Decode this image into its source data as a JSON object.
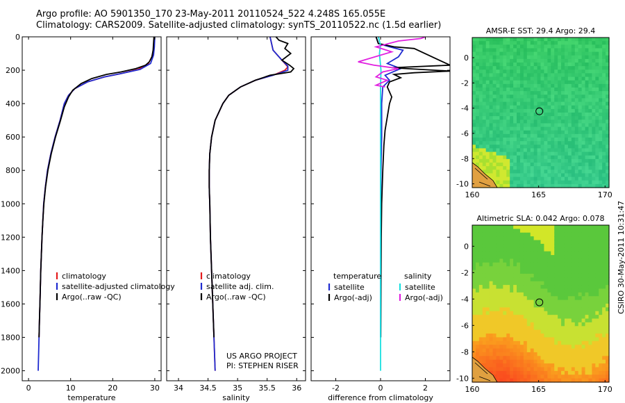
{
  "header": {
    "line1": "Argo profile: AO 5901350_170 23-May-2011 20110524_522 4.248S 165.055E",
    "line2": "Climatology: CARS2009. Satellite-adjusted climatology: synTS_20110522.nc (1.5d earlier)"
  },
  "credit": {
    "project": "US ARGO PROJECT",
    "pi": "PI: STEPHEN RISER",
    "stamp": "CSIRO 30-May-2011 10:31:47"
  },
  "colors": {
    "climatology": "#e41a1c",
    "satellite": "#1f2bd0",
    "argo": "#000000",
    "salinity_satellite": "#19e0e0",
    "salinity_argo": "#e020e0"
  },
  "chart_data": [
    {
      "type": "line",
      "id": "temperature",
      "xlabel": "temperature",
      "xlim": [
        -1.5,
        31.5
      ],
      "ylim": [
        2060,
        0
      ],
      "xticks": [
        0,
        10,
        20,
        30
      ],
      "yticks": [
        0,
        200,
        400,
        600,
        800,
        1000,
        1200,
        1400,
        1600,
        1800,
        2000
      ],
      "legend": [
        "climatology",
        "satellite-adjusted climatology",
        "Argo(..raw -QC)"
      ],
      "series": [
        {
          "name": "climatology",
          "color": "#e41a1c",
          "points": [
            [
              29.9,
              0
            ],
            [
              29.8,
              60
            ],
            [
              29.5,
              110
            ],
            [
              28.5,
              160
            ],
            [
              26,
              195
            ],
            [
              22,
              220
            ],
            [
              18,
              240
            ],
            [
              14,
              270
            ],
            [
              11,
              310
            ],
            [
              9.5,
              350
            ],
            [
              8.5,
              400
            ],
            [
              7.5,
              500
            ],
            [
              6.3,
              600
            ],
            [
              5.3,
              700
            ],
            [
              4.5,
              800
            ],
            [
              4.0,
              900
            ],
            [
              3.6,
              1000
            ],
            [
              3.4,
              1100
            ],
            [
              3.2,
              1200
            ],
            [
              3.05,
              1300
            ],
            [
              2.9,
              1400
            ],
            [
              2.8,
              1500
            ],
            [
              2.7,
              1600
            ],
            [
              2.6,
              1700
            ],
            [
              2.5,
              1800
            ]
          ]
        },
        {
          "name": "satellite-adjusted climatology",
          "color": "#1f2bd0",
          "points": [
            [
              30.0,
              0
            ],
            [
              29.9,
              60
            ],
            [
              29.7,
              110
            ],
            [
              29,
              160
            ],
            [
              26.5,
              195
            ],
            [
              22,
              220
            ],
            [
              18,
              240
            ],
            [
              14,
              270
            ],
            [
              11,
              310
            ],
            [
              9.5,
              350
            ],
            [
              8.5,
              400
            ],
            [
              7.5,
              500
            ],
            [
              6.3,
              600
            ],
            [
              5.3,
              700
            ],
            [
              4.5,
              800
            ],
            [
              4.0,
              900
            ],
            [
              3.6,
              1000
            ],
            [
              3.4,
              1100
            ],
            [
              3.2,
              1200
            ],
            [
              3.05,
              1300
            ],
            [
              2.9,
              1400
            ],
            [
              2.8,
              1500
            ],
            [
              2.7,
              1600
            ],
            [
              2.6,
              1700
            ],
            [
              2.5,
              1800
            ],
            [
              2.4,
              1900
            ],
            [
              2.3,
              2000
            ]
          ]
        },
        {
          "name": "Argo(..raw -QC)",
          "color": "#000000",
          "points": [
            [
              29.8,
              0
            ],
            [
              29.7,
              40
            ],
            [
              29.6,
              80
            ],
            [
              29.3,
              120
            ],
            [
              28.7,
              150
            ],
            [
              27.8,
              170
            ],
            [
              25.5,
              190
            ],
            [
              22,
              210
            ],
            [
              18.5,
              225
            ],
            [
              15,
              250
            ],
            [
              12.5,
              280
            ],
            [
              10.5,
              320
            ],
            [
              9.5,
              360
            ],
            [
              8.5,
              420
            ],
            [
              7.6,
              500
            ],
            [
              6.4,
              600
            ],
            [
              5.4,
              700
            ],
            [
              4.6,
              800
            ],
            [
              4.05,
              900
            ],
            [
              3.65,
              1000
            ],
            [
              3.4,
              1100
            ],
            [
              3.2,
              1200
            ],
            [
              3.05,
              1300
            ],
            [
              2.9,
              1400
            ],
            [
              2.8,
              1500
            ],
            [
              2.7,
              1600
            ],
            [
              2.6,
              1700
            ],
            [
              2.5,
              1800
            ]
          ]
        }
      ]
    },
    {
      "type": "line",
      "id": "salinity",
      "xlabel": "salinity",
      "xlim": [
        33.8,
        36.15
      ],
      "ylim": [
        2060,
        0
      ],
      "xticks": [
        34,
        34.5,
        35,
        35.5,
        36
      ],
      "legend": [
        "climatology",
        "satellite adj. clim.",
        "Argo(..raw -QC)"
      ],
      "series": [
        {
          "name": "climatology",
          "color": "#e41a1c",
          "points": [
            [
              35.55,
              0
            ],
            [
              35.6,
              80
            ],
            [
              35.75,
              140
            ],
            [
              35.85,
              180
            ],
            [
              35.8,
              200
            ],
            [
              35.6,
              230
            ],
            [
              35.3,
              260
            ],
            [
              35.05,
              300
            ],
            [
              34.85,
              350
            ],
            [
              34.75,
              400
            ],
            [
              34.62,
              500
            ],
            [
              34.56,
              600
            ],
            [
              34.53,
              700
            ],
            [
              34.52,
              800
            ],
            [
              34.52,
              900
            ],
            [
              34.53,
              1000
            ],
            [
              34.54,
              1200
            ],
            [
              34.56,
              1400
            ],
            [
              34.58,
              1600
            ],
            [
              34.6,
              1800
            ],
            [
              34.62,
              2000
            ]
          ]
        },
        {
          "name": "satellite adj. clim.",
          "color": "#1f2bd0",
          "points": [
            [
              35.55,
              0
            ],
            [
              35.6,
              80
            ],
            [
              35.75,
              140
            ],
            [
              35.85,
              175
            ],
            [
              35.85,
              200
            ],
            [
              35.6,
              230
            ],
            [
              35.3,
              260
            ],
            [
              35.05,
              300
            ],
            [
              34.85,
              350
            ],
            [
              34.75,
              400
            ],
            [
              34.62,
              500
            ],
            [
              34.56,
              600
            ],
            [
              34.53,
              700
            ],
            [
              34.52,
              800
            ],
            [
              34.52,
              900
            ],
            [
              34.53,
              1000
            ],
            [
              34.54,
              1200
            ],
            [
              34.56,
              1400
            ],
            [
              34.58,
              1600
            ],
            [
              34.6,
              1800
            ],
            [
              34.62,
              2000
            ]
          ]
        },
        {
          "name": "Argo(..raw -QC)",
          "color": "#000000",
          "points": [
            [
              35.65,
              0
            ],
            [
              35.7,
              20
            ],
            [
              35.85,
              40
            ],
            [
              35.8,
              70
            ],
            [
              35.9,
              100
            ],
            [
              35.75,
              140
            ],
            [
              35.88,
              170
            ],
            [
              35.95,
              190
            ],
            [
              35.9,
              210
            ],
            [
              35.55,
              230
            ],
            [
              35.3,
              260
            ],
            [
              35.05,
              300
            ],
            [
              34.85,
              350
            ],
            [
              34.75,
              400
            ],
            [
              34.62,
              500
            ],
            [
              34.56,
              600
            ],
            [
              34.53,
              700
            ],
            [
              34.52,
              800
            ],
            [
              34.52,
              900
            ],
            [
              34.53,
              1000
            ],
            [
              34.54,
              1200
            ],
            [
              34.56,
              1400
            ],
            [
              34.58,
              1600
            ],
            [
              34.6,
              1800
            ]
          ]
        }
      ]
    },
    {
      "type": "line",
      "id": "difference",
      "xlabel": "difference from climatology",
      "xlim": [
        -3.1,
        3.1
      ],
      "ylim": [
        2060,
        0
      ],
      "xticks": [
        -2,
        0,
        2
      ],
      "legend_headers": [
        "temperature",
        "salinity"
      ],
      "legend": [
        "satellite",
        "Argo(-adj)",
        "satellite",
        "Argo(-adj)"
      ],
      "series": [
        {
          "name": "temperature satellite",
          "color": "#1f2bd0",
          "points": [
            [
              -0.2,
              0
            ],
            [
              -0.1,
              40
            ],
            [
              0.4,
              60
            ],
            [
              1.0,
              80
            ],
            [
              0.8,
              120
            ],
            [
              0.3,
              160
            ],
            [
              0.9,
              190
            ],
            [
              0.2,
              230
            ],
            [
              0.4,
              260
            ],
            [
              0.1,
              300
            ],
            [
              0.05,
              400
            ],
            [
              0.05,
              600
            ],
            [
              0.02,
              800
            ],
            [
              0.01,
              1000
            ],
            [
              0.0,
              1300
            ],
            [
              0.0,
              1600
            ],
            [
              0.0,
              1800
            ]
          ]
        },
        {
          "name": "temperature Argo(-adj)",
          "color": "#000000",
          "points": [
            [
              -0.2,
              0
            ],
            [
              -0.1,
              40
            ],
            [
              0.6,
              60
            ],
            [
              1.5,
              70
            ],
            [
              3.1,
              170
            ],
            [
              0.5,
              185
            ],
            [
              3.1,
              205
            ],
            [
              1.5,
              215
            ],
            [
              0.6,
              225
            ],
            [
              0.9,
              245
            ],
            [
              0.4,
              270
            ],
            [
              0.3,
              300
            ],
            [
              0.5,
              360
            ],
            [
              0.4,
              400
            ],
            [
              0.3,
              480
            ],
            [
              0.2,
              560
            ],
            [
              0.15,
              650
            ],
            [
              0.1,
              800
            ],
            [
              0.05,
              1000
            ],
            [
              0.03,
              1200
            ],
            [
              0.02,
              1500
            ],
            [
              0.01,
              1800
            ]
          ]
        },
        {
          "name": "salinity satellite",
          "color": "#19e0e0",
          "points": [
            [
              -0.1,
              0
            ],
            [
              0.0,
              50
            ],
            [
              -0.05,
              100
            ],
            [
              0.02,
              200
            ],
            [
              0.0,
              300
            ],
            [
              0.0,
              500
            ],
            [
              0.0,
              800
            ],
            [
              0.0,
              1200
            ],
            [
              0.0,
              1600
            ],
            [
              0.0,
              2000
            ]
          ]
        },
        {
          "name": "salinity Argo(-adj)",
          "color": "#e020e0",
          "points": [
            [
              2.0,
              0
            ],
            [
              1.8,
              10
            ],
            [
              0.8,
              25
            ],
            [
              -0.2,
              60
            ],
            [
              0.5,
              90
            ],
            [
              -1.0,
              150
            ],
            [
              -0.3,
              170
            ],
            [
              0.8,
              190
            ],
            [
              0.1,
              210
            ],
            [
              -0.2,
              240
            ],
            [
              0.3,
              260
            ],
            [
              -0.2,
              290
            ],
            [
              0.2,
              300
            ]
          ]
        }
      ]
    },
    {
      "type": "heatmap",
      "id": "sst-map",
      "title": "AMSR-E SST: 29.4 Argo: 29.4",
      "xlim": [
        160,
        170.3
      ],
      "ylim": [
        -10.3,
        1.6
      ],
      "xticks": [
        160,
        165,
        170
      ],
      "yticks": [
        0,
        -2,
        -4,
        -6,
        -8,
        -10
      ],
      "marker": [
        165.055,
        -4.248
      ]
    },
    {
      "type": "heatmap",
      "id": "sla-map",
      "title": "Altimetric SLA: 0.042 Argo: 0.078",
      "xlim": [
        160,
        170.3
      ],
      "ylim": [
        -10.3,
        1.6
      ],
      "xticks": [
        160,
        165,
        170
      ],
      "yticks": [
        0,
        -2,
        -4,
        -6,
        -8,
        -10
      ],
      "marker": [
        165.055,
        -4.248
      ]
    }
  ]
}
